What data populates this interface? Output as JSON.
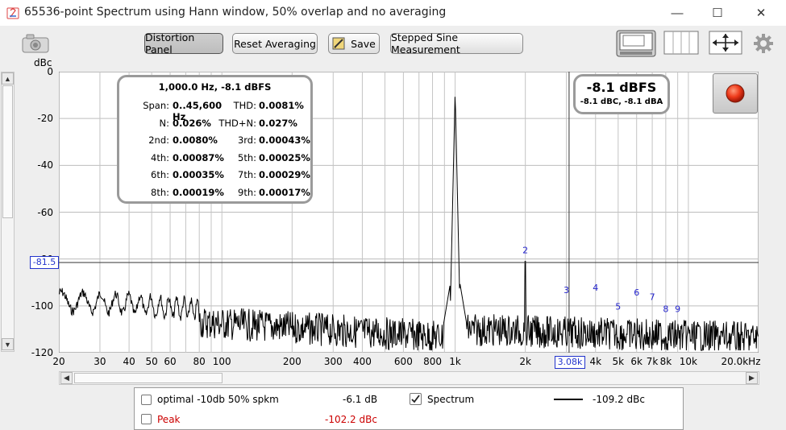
{
  "window": {
    "title": "65536-point Spectrum using Hann window, 50% overlap and no averaging",
    "minimize": "—",
    "maximize": "☐",
    "close": "✕"
  },
  "toolbar": {
    "distortion_panel": "Distortion Panel",
    "reset_averaging": "Reset Averaging",
    "save": "Save",
    "stepped_sine": "Stepped Sine Measurement"
  },
  "plot": {
    "y_unit": "dBc",
    "y_ticks": [
      "0",
      "-20",
      "-40",
      "-60",
      "-80",
      "-100",
      "-120"
    ],
    "y_cursor_label": "-81.5",
    "x_ticks": [
      "20",
      "30",
      "40",
      "50",
      "60",
      "80",
      "100",
      "200",
      "300",
      "400",
      "600",
      "800",
      "1k",
      "2k",
      "4k",
      "5k",
      "6k",
      "7k",
      "8k",
      "10k",
      "20.0kHz"
    ],
    "x_cursor_label": "3.08k",
    "harmonic_labels": [
      "2",
      "3",
      "4",
      "5",
      "6",
      "7",
      "8",
      "9"
    ],
    "peak_freq_hz": 1000,
    "x_range_hz": [
      20,
      20000
    ],
    "y_range_db": [
      -120,
      0
    ],
    "y_cursor_db": -81.5,
    "x_cursor_hz": 3080,
    "trace_color": "#000000",
    "cursor_label_color": "#0000cc"
  },
  "info": {
    "header": "1,000.0 Hz, -8.1 dBFS",
    "rows": [
      {
        "l1": "Span:",
        "v1": "0..45,600 Hz",
        "l2": "THD:",
        "v2": "0.0081%"
      },
      {
        "l1": "N:",
        "v1": "0.026%",
        "l2": "THD+N:",
        "v2": "0.027%"
      },
      {
        "l1": "2nd:",
        "v1": "0.0080%",
        "l2": "3rd:",
        "v2": "0.00043%"
      },
      {
        "l1": "4th:",
        "v1": "0.00087%",
        "l2": "5th:",
        "v2": "0.00025%"
      },
      {
        "l1": "6th:",
        "v1": "0.00035%",
        "l2": "7th:",
        "v2": "0.00029%"
      },
      {
        "l1": "8th:",
        "v1": "0.00019%",
        "l2": "9th:",
        "v2": "0.00017%"
      }
    ]
  },
  "level": {
    "main": "-8.1 dBFS",
    "sub": "-8.1 dBC, -8.1 dBA"
  },
  "legend": {
    "row1_name": "optimal -10db 50% spkm",
    "row1_value": "-6.1 dB",
    "row1_checked": false,
    "spectrum_name": "Spectrum",
    "spectrum_checked": true,
    "spectrum_value": "-109.2 dBc",
    "peak_name": "Peak",
    "peak_value": "-102.2 dBc",
    "peak_checked": false,
    "peak_color": "#cc0000"
  },
  "icons": [
    "camera-icon",
    "app-icon",
    "save-icon",
    "layout-graph-icon",
    "layout-columns-icon",
    "expand-arrows-icon",
    "gear-icon",
    "record-icon"
  ]
}
